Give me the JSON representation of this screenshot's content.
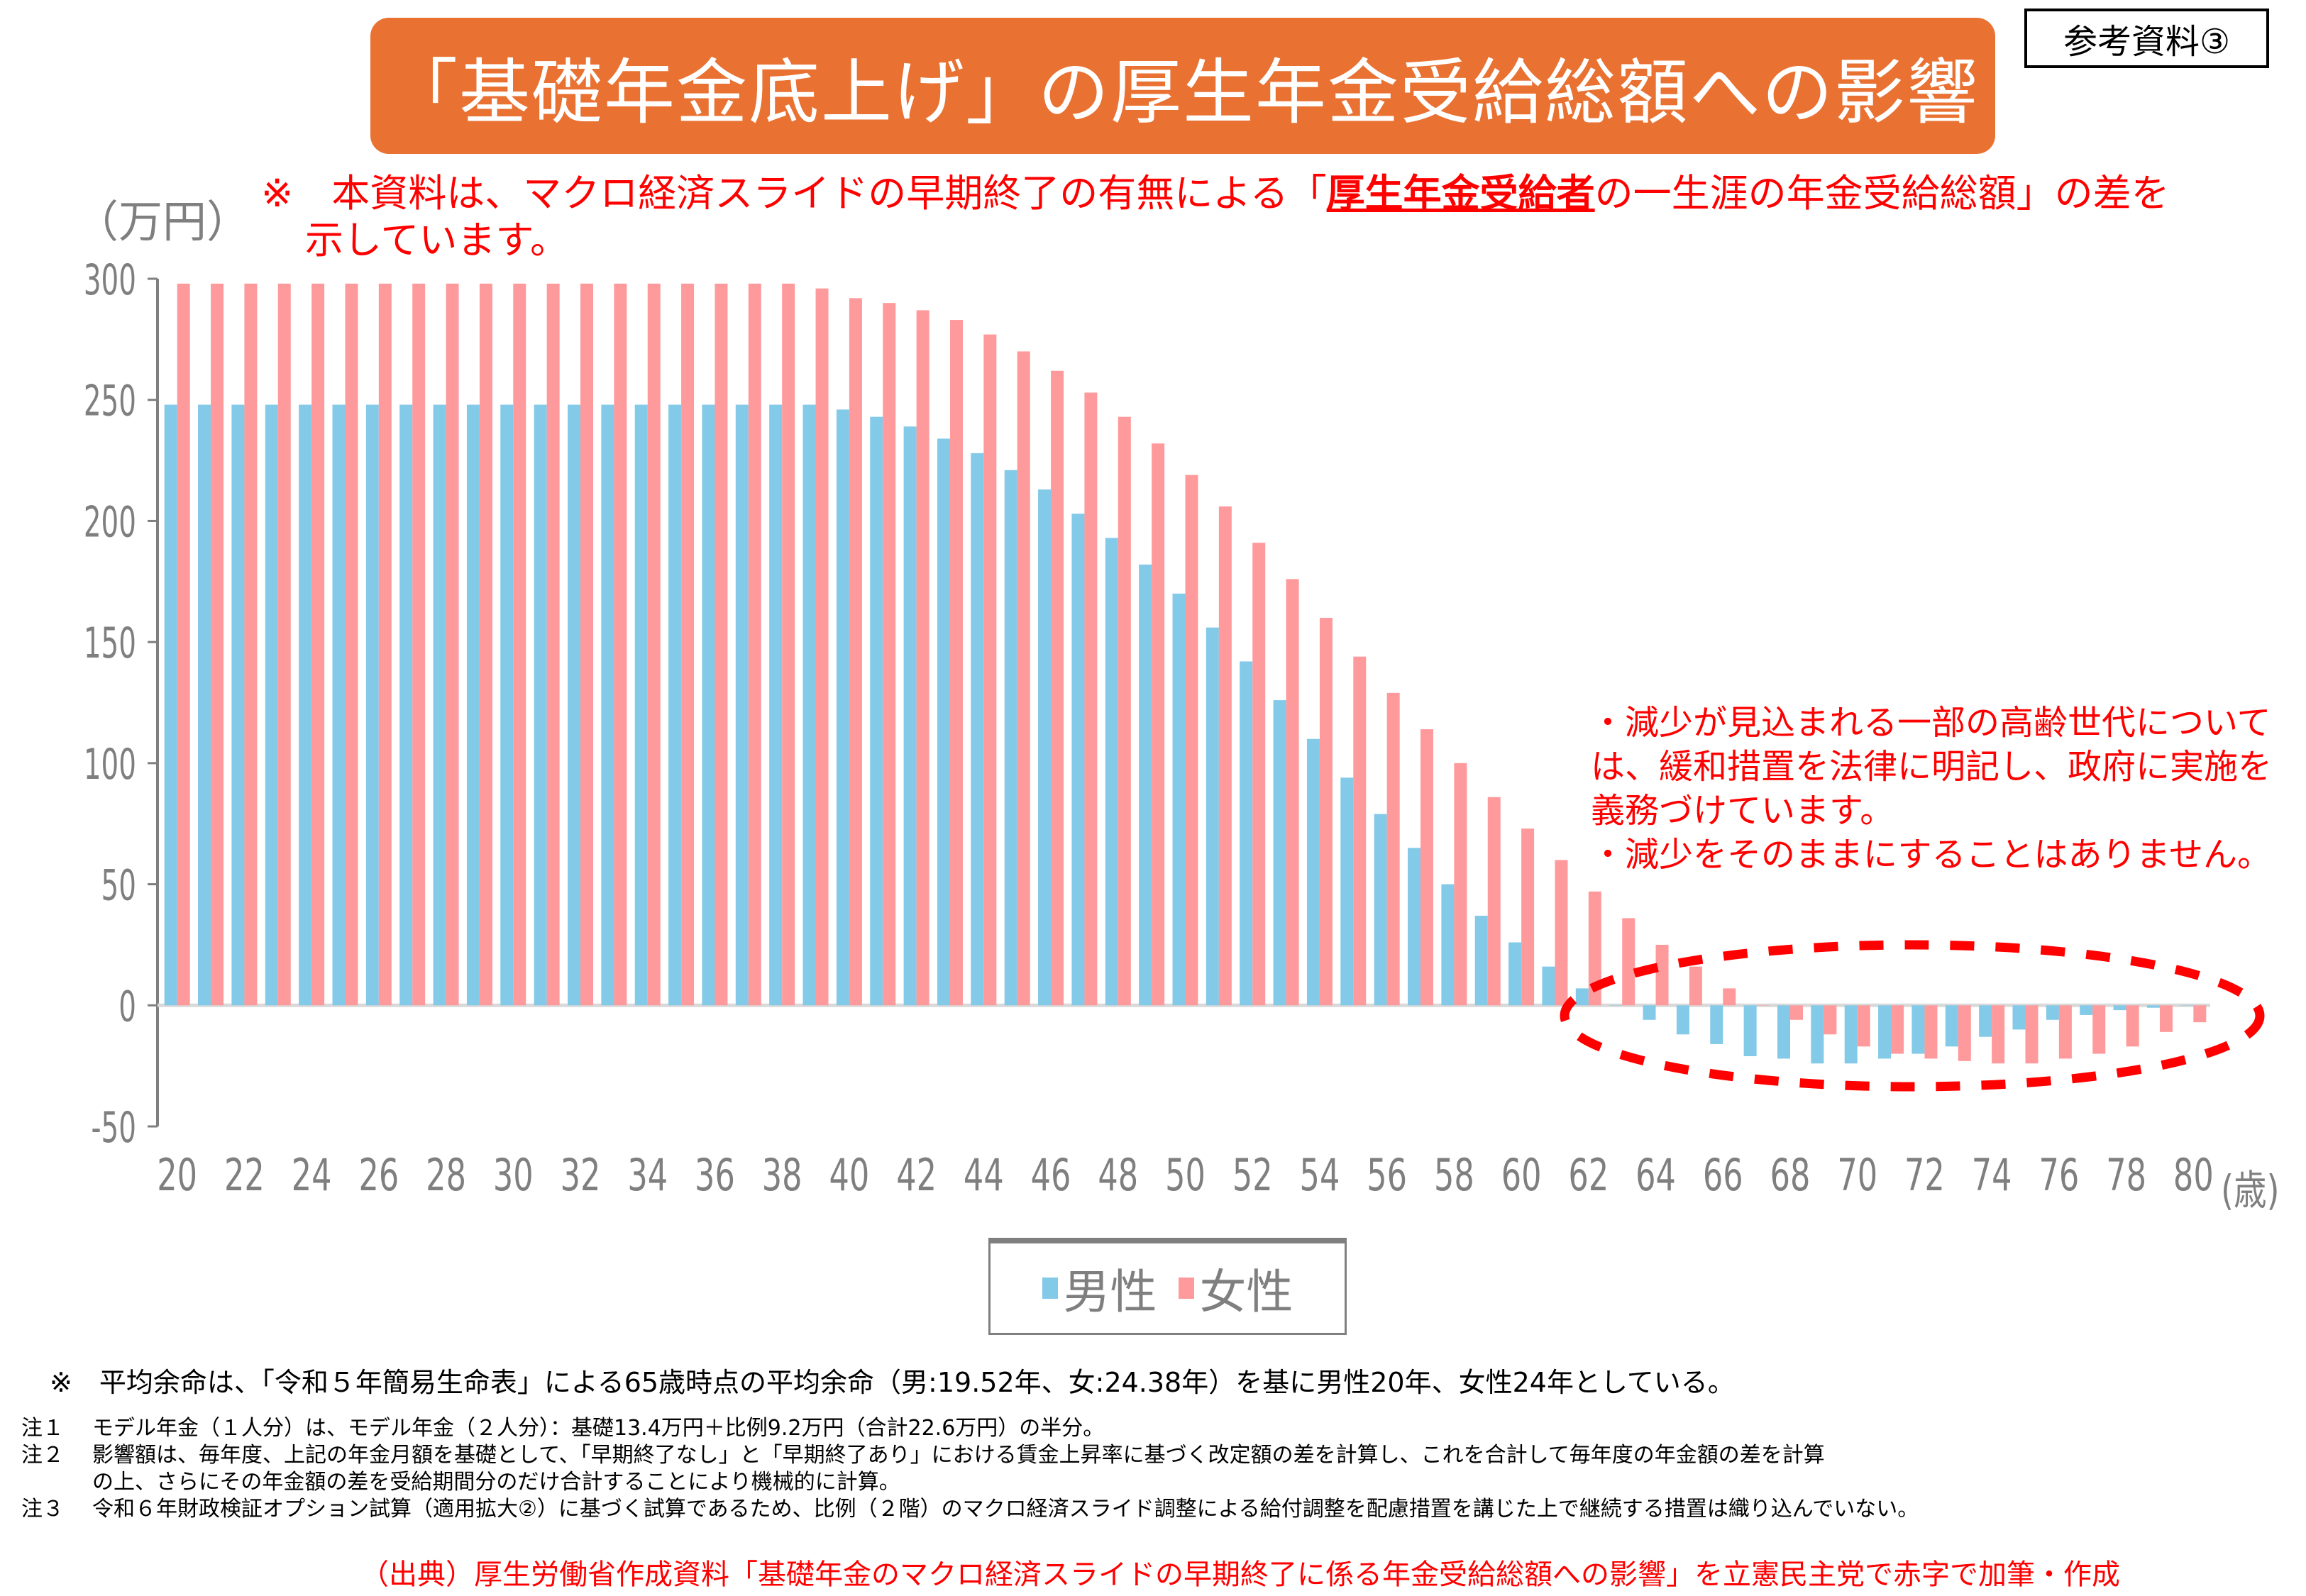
{
  "title": "「基礎年金底上げ」の厚生年金受給総額への影響",
  "reference_badge": "参考資料③",
  "unit_label": "（万円）",
  "top_note": {
    "prefix": "※　本資料は、マクロ経済スライドの早期終了の有無による「",
    "emphasis": "厚生年金受給者",
    "suffix": "の一生涯の年金受給総額」の差を",
    "line2": "示しています。"
  },
  "side_note": [
    "・減少が見込まれる一部の高齢世代について",
    "は、緩和措置を法律に明記し、政府に実施を",
    "義務づけています。",
    "・減少をそのままにすることはありません。"
  ],
  "legend": [
    {
      "label": "男性",
      "color": "#83c9e8"
    },
    {
      "label": "女性",
      "color": "#ff9a9c"
    }
  ],
  "x_unit_label": "(歳)",
  "footnote_main": "※　平均余命は、「令和５年簡易生命表」による65歳時点の平均余命（男:19.52年、女:24.38年）を基に男性20年、女性24年としている。",
  "footnotes": [
    {
      "label": "注１",
      "text": "モデル年金（１人分）は、モデル年金（２人分）：基礎13.4万円＋比例9.2万円（合計22.6万円）の半分。"
    },
    {
      "label": "注２",
      "text": "影響額は、毎年度、上記の年金月額を基礎として、「早期終了なし」と「早期終了あり」における賃金上昇率に基づく改定額の差を計算し、これを合計して毎年度の年金額の差を計算"
    },
    {
      "label": "",
      "text": "の上、さらにその年金額の差を受給期間分のだけ合計することにより機械的に計算。"
    },
    {
      "label": "注３",
      "text": "令和６年財政検証オプション試算（適用拡大②）に基づく試算であるため、比例（２階）のマクロ経済スライド調整による給付調整を配慮措置を講じた上で継続する措置は織り込んでいない。"
    }
  ],
  "source": "（出典）厚生労働省作成資料「基礎年金のマクロ経済スライドの早期終了に係る年金受給総額への影響」を立憲民主党で赤字で加筆・作成",
  "colors": {
    "title_bg": "#e97132",
    "male": "#83c9e8",
    "female": "#ff9a9c",
    "annotation_red": "#ff0000",
    "axis_gray": "#7f7f7f",
    "zero_line": "#d9d9d9"
  },
  "chart_data": {
    "type": "bar",
    "title": "「基礎年金底上げ」の厚生年金受給総額への影響",
    "xlabel": "(歳)",
    "ylabel": "（万円）",
    "ylim": [
      -50,
      300
    ],
    "yticks": [
      300,
      250,
      200,
      150,
      100,
      50,
      0,
      -50
    ],
    "xtick_labels": [
      "20",
      "22",
      "24",
      "26",
      "28",
      "30",
      "32",
      "34",
      "36",
      "38",
      "40",
      "42",
      "44",
      "46",
      "48",
      "50",
      "52",
      "54",
      "56",
      "58",
      "60",
      "62",
      "64",
      "66",
      "68",
      "70",
      "72",
      "74",
      "76",
      "78",
      "80"
    ],
    "legend_position": "bottom-center",
    "grid": false,
    "annotation": "dashed red ellipse around ages 63-80 (negative region)",
    "x": [
      20,
      21,
      22,
      23,
      24,
      25,
      26,
      27,
      28,
      29,
      30,
      31,
      32,
      33,
      34,
      35,
      36,
      37,
      38,
      39,
      40,
      41,
      42,
      43,
      44,
      45,
      46,
      47,
      48,
      49,
      50,
      51,
      52,
      53,
      54,
      55,
      56,
      57,
      58,
      59,
      60,
      61,
      62,
      63,
      64,
      65,
      66,
      67,
      68,
      69,
      70,
      71,
      72,
      73,
      74,
      75,
      76,
      77,
      78,
      79,
      80
    ],
    "series": [
      {
        "name": "男性",
        "values": [
          248,
          248,
          248,
          248,
          248,
          248,
          248,
          248,
          248,
          248,
          248,
          248,
          248,
          248,
          248,
          248,
          248,
          248,
          248,
          248,
          246,
          243,
          239,
          234,
          228,
          221,
          213,
          203,
          193,
          182,
          170,
          156,
          142,
          126,
          110,
          94,
          79,
          65,
          50,
          37,
          26,
          16,
          7,
          0,
          -6,
          -12,
          -16,
          -21,
          -22,
          -24,
          -24,
          -22,
          -20,
          -17,
          -13,
          -10,
          -6,
          -4,
          -2,
          -1,
          0
        ]
      },
      {
        "name": "女性",
        "values": [
          298,
          298,
          298,
          298,
          298,
          298,
          298,
          298,
          298,
          298,
          298,
          298,
          298,
          298,
          298,
          298,
          298,
          298,
          298,
          296,
          292,
          290,
          287,
          283,
          277,
          270,
          262,
          253,
          243,
          232,
          219,
          206,
          191,
          176,
          160,
          144,
          129,
          114,
          100,
          86,
          73,
          60,
          47,
          36,
          25,
          16,
          7,
          0,
          -6,
          -12,
          -17,
          -20,
          -22,
          -23,
          -24,
          -24,
          -22,
          -20,
          -17,
          -11,
          -7
        ]
      }
    ]
  }
}
